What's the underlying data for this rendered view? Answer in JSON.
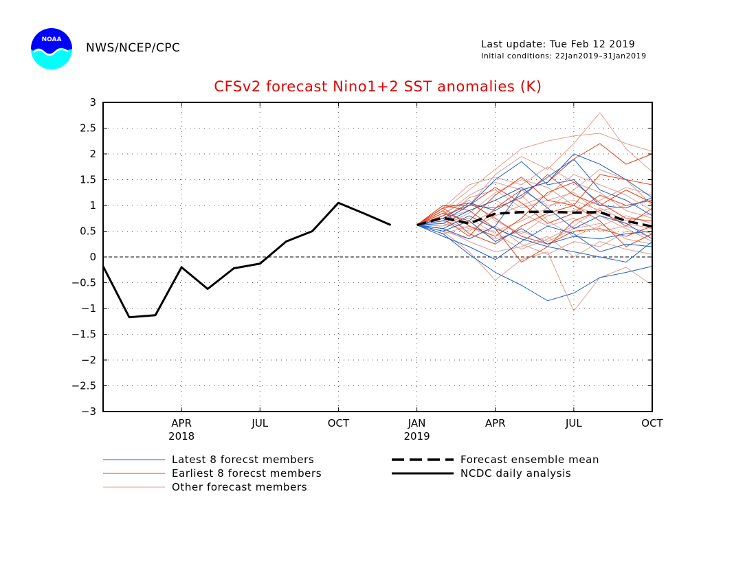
{
  "header": {
    "logo_text": "NOAA",
    "org": "NWS/NCEP/CPC",
    "last_update": "Last update: Tue Feb 12 2019",
    "initial_conditions": "Initial conditions: 22Jan2019–31Jan2019"
  },
  "colors": {
    "latest": "#1f5fc8",
    "earliest": "#e8401a",
    "other": "#e0a090",
    "ncdc": "#000000",
    "title": "#e00000"
  },
  "chart_data": {
    "type": "line",
    "title": "CFSv2 forecast Nino1+2 SST anomalies (K)",
    "xlabel": "",
    "ylabel": "",
    "x_range_months": [
      "2018-01",
      "2019-10"
    ],
    "ylim": [
      -3,
      3
    ],
    "yticks": [
      -3,
      -2.5,
      -2,
      -1.5,
      -1,
      -0.5,
      0,
      0.5,
      1,
      1.5,
      2,
      2.5,
      3
    ],
    "ytick_labels": [
      "−3",
      "−2.5",
      "−2",
      "−1.5",
      "−1",
      "−0.5",
      "0",
      "0.5",
      "1",
      "1.5",
      "2",
      "2.5",
      "3"
    ],
    "xticks": [
      {
        "month": "2018-04",
        "label": "APR",
        "year": "2018"
      },
      {
        "month": "2018-07",
        "label": "JUL",
        "year": ""
      },
      {
        "month": "2018-10",
        "label": "OCT",
        "year": ""
      },
      {
        "month": "2019-01",
        "label": "JAN",
        "year": "2019"
      },
      {
        "month": "2019-04",
        "label": "APR",
        "year": ""
      },
      {
        "month": "2019-07",
        "label": "JUL",
        "year": ""
      },
      {
        "month": "2019-10",
        "label": "OCT",
        "year": ""
      }
    ],
    "grid": true,
    "zero_line": true,
    "legend": {
      "placement": "bottom",
      "entries": [
        {
          "key": "latest",
          "label": "Latest 8 forecst members",
          "style": "thin"
        },
        {
          "key": "earliest",
          "label": "Earliest 8 forecst members",
          "style": "thin"
        },
        {
          "key": "other",
          "label": "Other forecast members",
          "style": "thin"
        },
        {
          "key": "mean",
          "label": "Forecast ensemble mean",
          "style": "dashed"
        },
        {
          "key": "ncdc",
          "label": "NCDC daily analysis",
          "style": "thick"
        }
      ]
    },
    "forecast_months": [
      "2019-01",
      "2019-02",
      "2019-03",
      "2019-04",
      "2019-05",
      "2019-06",
      "2019-07",
      "2019-08",
      "2019-09",
      "2019-10"
    ],
    "ncdc": {
      "name": "NCDC daily analysis",
      "points": [
        [
          "2018-01-01",
          -0.18
        ],
        [
          "2018-02-01",
          -1.17
        ],
        [
          "2018-03-01",
          -1.13
        ],
        [
          "2018-04-01",
          -0.2
        ],
        [
          "2018-05-01",
          -0.62
        ],
        [
          "2018-06-01",
          -0.22
        ],
        [
          "2018-07-01",
          -0.13
        ],
        [
          "2018-08-01",
          0.3
        ],
        [
          "2018-09-01",
          0.5
        ],
        [
          "2018-10-01",
          1.05
        ],
        [
          "2018-11-01",
          0.84
        ],
        [
          "2018-12-01",
          0.62
        ]
      ]
    },
    "ensemble_mean": {
      "name": "Forecast ensemble mean",
      "values": [
        0.62,
        0.76,
        0.65,
        0.84,
        0.87,
        0.88,
        0.86,
        0.87,
        0.7,
        0.59
      ]
    },
    "members": [
      {
        "group": "latest",
        "values": [
          0.62,
          0.55,
          0.35,
          0.6,
          1.3,
          1.45,
          2.0,
          1.8,
          1.5,
          1.15
        ]
      },
      {
        "group": "latest",
        "values": [
          0.62,
          0.45,
          0.05,
          -0.3,
          -0.55,
          -0.85,
          -0.7,
          -0.4,
          -0.3,
          -0.18
        ]
      },
      {
        "group": "latest",
        "values": [
          0.62,
          0.7,
          1.0,
          1.5,
          1.85,
          1.4,
          1.5,
          1.0,
          0.95,
          1.15
        ]
      },
      {
        "group": "latest",
        "values": [
          0.62,
          0.5,
          0.7,
          0.3,
          0.55,
          0.25,
          0.4,
          0.35,
          0.45,
          0.5
        ]
      },
      {
        "group": "latest",
        "values": [
          0.62,
          0.65,
          0.9,
          1.1,
          1.35,
          0.95,
          0.55,
          0.8,
          0.65,
          0.35
        ]
      },
      {
        "group": "latest",
        "values": [
          0.62,
          0.4,
          0.2,
          -0.05,
          0.3,
          0.6,
          0.45,
          0.1,
          0.25,
          0.2
        ]
      },
      {
        "group": "latest",
        "values": [
          0.62,
          0.75,
          1.05,
          0.9,
          1.2,
          1.55,
          1.9,
          1.3,
          1.1,
          0.8
        ]
      },
      {
        "group": "latest",
        "values": [
          0.62,
          0.55,
          0.8,
          0.55,
          0.35,
          0.2,
          0.1,
          0.0,
          -0.1,
          0.3
        ]
      },
      {
        "group": "earliest",
        "values": [
          0.62,
          1.0,
          1.0,
          0.95,
          1.3,
          1.45,
          1.9,
          2.2,
          1.8,
          2.0
        ]
      },
      {
        "group": "earliest",
        "values": [
          0.62,
          0.95,
          1.05,
          0.75,
          0.4,
          0.25,
          0.5,
          0.55,
          0.4,
          0.6
        ]
      },
      {
        "group": "earliest",
        "values": [
          0.62,
          0.85,
          0.7,
          1.2,
          1.55,
          1.1,
          1.0,
          1.6,
          1.5,
          1.4
        ]
      },
      {
        "group": "earliest",
        "values": [
          0.62,
          1.0,
          0.9,
          0.55,
          -0.1,
          0.2,
          0.7,
          0.9,
          0.6,
          0.95
        ]
      },
      {
        "group": "earliest",
        "values": [
          0.62,
          0.9,
          0.45,
          0.25,
          0.6,
          0.85,
          1.0,
          0.7,
          0.2,
          0.45
        ]
      },
      {
        "group": "earliest",
        "values": [
          0.62,
          0.8,
          1.0,
          1.35,
          1.05,
          0.65,
          0.85,
          1.2,
          1.0,
          1.1
        ]
      },
      {
        "group": "earliest",
        "values": [
          0.62,
          0.95,
          0.6,
          0.4,
          0.75,
          1.25,
          1.45,
          1.05,
          0.75,
          0.7
        ]
      },
      {
        "group": "earliest",
        "values": [
          0.62,
          0.75,
          0.4,
          0.95,
          1.15,
          1.6,
          1.2,
          1.0,
          1.3,
          1.05
        ]
      },
      {
        "group": "other",
        "values": [
          0.62,
          0.9,
          1.3,
          1.7,
          2.1,
          2.25,
          2.35,
          2.4,
          2.2,
          2.05
        ]
      },
      {
        "group": "other",
        "values": [
          0.62,
          0.7,
          1.0,
          1.6,
          1.95,
          1.7,
          2.2,
          2.8,
          2.1,
          1.65
        ]
      },
      {
        "group": "other",
        "values": [
          0.62,
          0.5,
          0.1,
          -0.45,
          -0.05,
          0.1,
          -1.05,
          -0.4,
          -0.2,
          -0.55
        ]
      },
      {
        "group": "other",
        "values": [
          0.62,
          0.8,
          1.2,
          1.45,
          1.3,
          1.0,
          1.1,
          0.9,
          1.0,
          1.1
        ]
      },
      {
        "group": "other",
        "values": [
          0.62,
          0.55,
          0.3,
          0.1,
          0.2,
          0.4,
          0.0,
          0.3,
          0.15,
          0.05
        ]
      },
      {
        "group": "other",
        "values": [
          0.62,
          0.75,
          0.9,
          1.1,
          0.85,
          0.6,
          0.75,
          0.5,
          0.6,
          0.45
        ]
      },
      {
        "group": "other",
        "values": [
          0.62,
          0.65,
          0.5,
          0.8,
          1.0,
          1.2,
          1.6,
          1.4,
          1.2,
          0.9
        ]
      },
      {
        "group": "other",
        "values": [
          0.62,
          0.45,
          0.6,
          0.35,
          0.5,
          0.3,
          0.55,
          0.65,
          0.35,
          0.25
        ]
      },
      {
        "group": "other",
        "values": [
          0.62,
          0.85,
          1.1,
          0.7,
          0.45,
          0.8,
          0.9,
          1.1,
          1.35,
          1.2
        ]
      },
      {
        "group": "other",
        "values": [
          0.62,
          0.6,
          0.85,
          1.25,
          1.5,
          1.35,
          1.0,
          0.8,
          0.55,
          0.3
        ]
      },
      {
        "group": "other",
        "values": [
          0.62,
          0.7,
          0.55,
          0.5,
          0.7,
          0.95,
          1.3,
          1.7,
          1.5,
          1.0
        ]
      },
      {
        "group": "other",
        "values": [
          0.62,
          0.5,
          0.35,
          0.6,
          0.25,
          0.05,
          0.3,
          0.2,
          0.5,
          0.4
        ]
      },
      {
        "group": "other",
        "values": [
          0.62,
          0.95,
          1.4,
          1.55,
          1.4,
          1.75,
          1.45,
          1.25,
          0.9,
          0.75
        ]
      },
      {
        "group": "other",
        "values": [
          0.62,
          0.8,
          0.65,
          0.9,
          1.2,
          0.7,
          0.4,
          0.6,
          0.8,
          0.65
        ]
      },
      {
        "group": "other",
        "values": [
          0.62,
          0.6,
          0.75,
          0.45,
          0.15,
          0.35,
          0.6,
          0.95,
          0.7,
          0.85
        ]
      },
      {
        "group": "other",
        "values": [
          0.62,
          0.7,
          1.15,
          1.3,
          0.95,
          1.1,
          1.25,
          0.85,
          0.65,
          0.55
        ]
      }
    ]
  }
}
